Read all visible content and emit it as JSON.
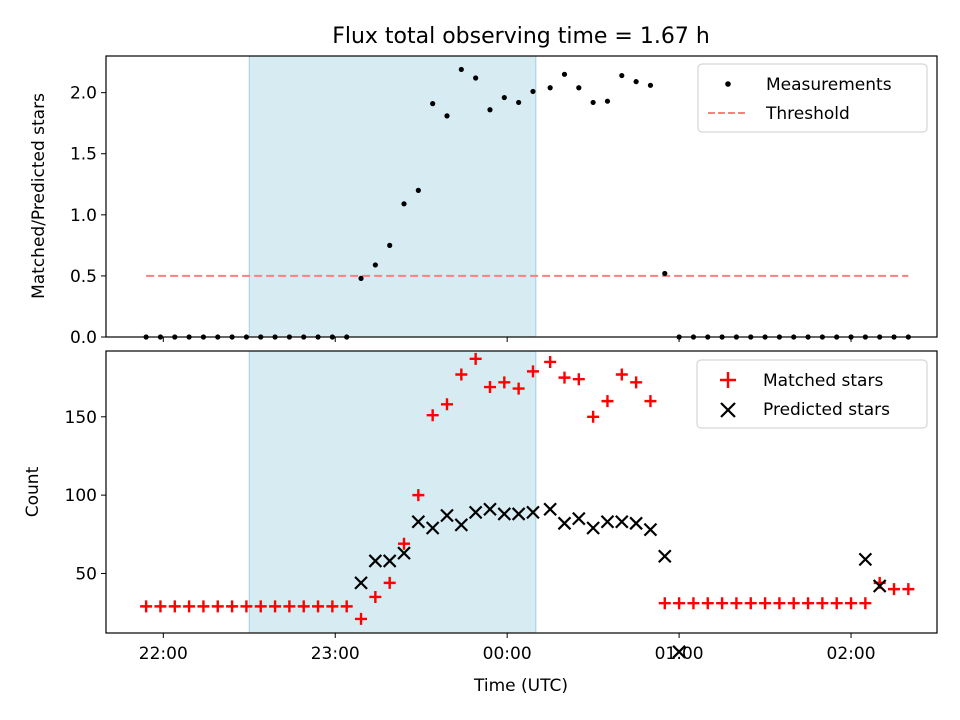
{
  "chart_data": [
    {
      "type": "scatter",
      "title": "Flux total observing time = 1.67 h",
      "xlabel": "",
      "ylabel": "Matched/Predicted stars",
      "x_unit": "minutes from 00:00 UTC",
      "xlim": [
        -140,
        150
      ],
      "ylim": [
        0,
        2.3
      ],
      "yticks": [
        0.0,
        0.5,
        1.0,
        1.5,
        2.0
      ],
      "ytick_labels": [
        "0.0",
        "0.5",
        "1.0",
        "1.5",
        "2.0"
      ],
      "shaded_interval": {
        "x": [
          -90,
          10
        ],
        "color": "#add8e6"
      },
      "legend": {
        "position": "top-right",
        "entries": [
          "Measurements",
          "Threshold"
        ]
      },
      "series": [
        {
          "name": "Measurements",
          "marker": "dot",
          "color": "#000000",
          "x": [
            -126,
            -121,
            -116,
            -111,
            -106,
            -101,
            -96,
            -91,
            -86,
            -81,
            -76,
            -71,
            -66,
            -61,
            -56,
            -51,
            -46,
            -41,
            -36,
            -31,
            -26,
            -21,
            -16,
            -11,
            -6,
            -1,
            4,
            9,
            15,
            20,
            25,
            30,
            35,
            40,
            45,
            50,
            55,
            60,
            65,
            70,
            75,
            80,
            85,
            90,
            95,
            100,
            105,
            110,
            115,
            120,
            125,
            130,
            135,
            140
          ],
          "y": [
            0,
            0,
            0,
            0,
            0,
            0,
            0,
            0,
            0,
            0,
            0,
            0,
            0,
            0,
            0,
            0.48,
            0.59,
            0.75,
            1.09,
            1.2,
            1.91,
            1.81,
            2.19,
            2.12,
            1.86,
            1.96,
            1.92,
            2.01,
            2.04,
            2.15,
            2.04,
            1.92,
            1.93,
            2.14,
            2.09,
            2.06,
            0.52,
            0,
            0,
            0,
            0,
            0,
            0,
            0,
            0,
            0,
            0,
            0,
            0,
            0,
            0,
            0,
            0,
            0
          ]
        },
        {
          "name": "Threshold",
          "type": "line",
          "style": "dashed",
          "color": "#ff7f7f",
          "x": [
            -126,
            140
          ],
          "y": [
            0.5,
            0.5
          ]
        }
      ]
    },
    {
      "type": "scatter",
      "title": "",
      "xlabel": "Time (UTC)",
      "ylabel": "Count",
      "x_unit": "minutes from 00:00 UTC",
      "xlim": [
        -140,
        150
      ],
      "ylim": [
        12,
        192
      ],
      "xticks": [
        -120,
        -60,
        0,
        60,
        120
      ],
      "xtick_labels": [
        "22:00",
        "23:00",
        "00:00",
        "01:00",
        "02:00"
      ],
      "yticks": [
        50,
        100,
        150
      ],
      "ytick_labels": [
        "50",
        "100",
        "150"
      ],
      "shaded_interval": {
        "x": [
          -90,
          10
        ],
        "color": "#add8e6"
      },
      "legend": {
        "position": "top-right",
        "entries": [
          "Matched stars",
          "Predicted stars"
        ]
      },
      "series": [
        {
          "name": "Matched stars",
          "marker": "plus",
          "color": "#ff0000",
          "x": [
            -126,
            -121,
            -116,
            -111,
            -106,
            -101,
            -96,
            -91,
            -86,
            -81,
            -76,
            -71,
            -66,
            -61,
            -56,
            -51,
            -46,
            -41,
            -36,
            -31,
            -26,
            -21,
            -16,
            -11,
            -6,
            -1,
            4,
            9,
            15,
            20,
            25,
            30,
            35,
            40,
            45,
            50,
            55,
            60,
            65,
            70,
            75,
            80,
            85,
            90,
            95,
            100,
            105,
            110,
            115,
            120,
            125,
            130,
            135,
            140
          ],
          "y": [
            29,
            29,
            29,
            29,
            29,
            29,
            29,
            29,
            29,
            29,
            29,
            29,
            29,
            29,
            29,
            21,
            35,
            44,
            69,
            100,
            151,
            158,
            177,
            187,
            169,
            172,
            168,
            179,
            185,
            175,
            174,
            150,
            160,
            177,
            172,
            160,
            31,
            31,
            31,
            31,
            31,
            31,
            31,
            31,
            31,
            31,
            31,
            31,
            31,
            31,
            31,
            44,
            40,
            40
          ]
        },
        {
          "name": "Predicted stars",
          "marker": "x",
          "color": "#000000",
          "x": [
            -51,
            -46,
            -41,
            -36,
            -31,
            -26,
            -21,
            -16,
            -11,
            -6,
            -1,
            4,
            9,
            15,
            20,
            25,
            30,
            35,
            40,
            45,
            50,
            55,
            60,
            125,
            130
          ],
          "y": [
            44,
            58,
            58,
            63,
            83,
            79,
            87,
            81,
            89,
            91,
            88,
            88,
            89,
            91,
            82,
            85,
            79,
            83,
            83,
            82,
            78,
            61,
            0,
            59,
            42
          ]
        }
      ]
    }
  ]
}
